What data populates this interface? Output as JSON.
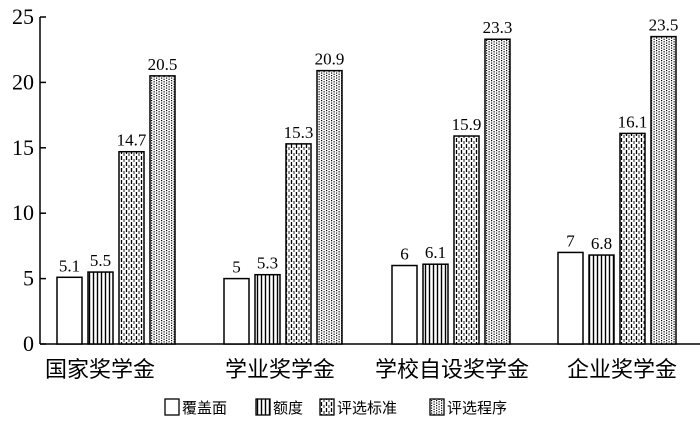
{
  "chart_data": {
    "type": "bar",
    "title": "",
    "xlabel": "",
    "ylabel": "",
    "ylim": [
      0,
      25
    ],
    "yticks": [
      0,
      5,
      10,
      15,
      20,
      25
    ],
    "categories": [
      "国家奖学金",
      "学业奖学金",
      "学校自设奖学金",
      "企业奖学金"
    ],
    "series": [
      {
        "name": "覆盖面",
        "values": [
          5.1,
          5,
          6,
          7
        ],
        "labels": [
          "5.1",
          "5",
          "6",
          "7"
        ],
        "pattern": "white"
      },
      {
        "name": "额度",
        "values": [
          5.5,
          5.3,
          6.1,
          6.8
        ],
        "labels": [
          "5.5",
          "5.3",
          "6.1",
          "6.8"
        ],
        "pattern": "vertical-lines"
      },
      {
        "name": "评选标准",
        "values": [
          14.7,
          15.3,
          15.9,
          16.1
        ],
        "labels": [
          "14.7",
          "15.3",
          "15.9",
          "16.1"
        ],
        "pattern": "dashed-vertical"
      },
      {
        "name": "评选程序",
        "values": [
          20.5,
          20.9,
          23.3,
          23.5
        ],
        "labels": [
          "20.5",
          "20.9",
          "23.3",
          "23.5"
        ],
        "pattern": "dotted-grid"
      }
    ],
    "legend_position": "bottom",
    "grid": false
  }
}
